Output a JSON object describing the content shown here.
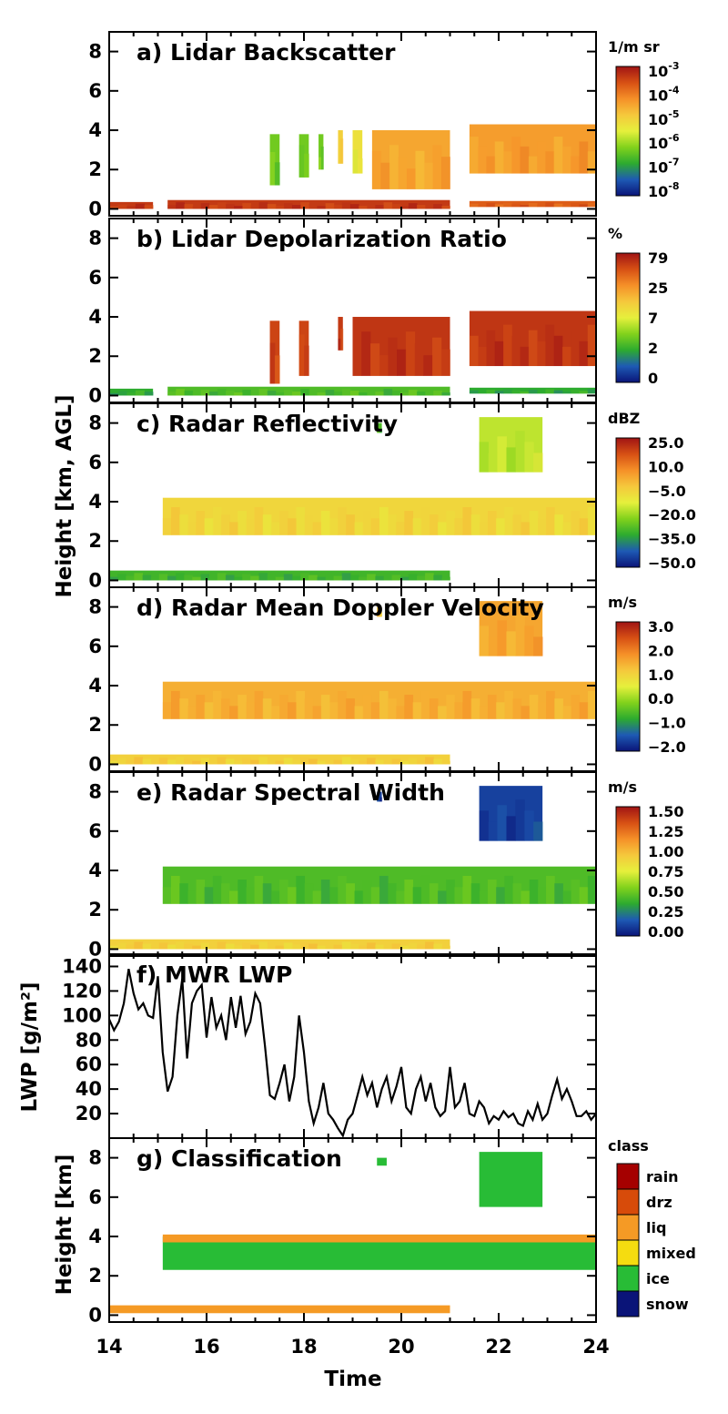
{
  "chart_data": [
    {
      "type": "heatmap",
      "panel": "a",
      "title": "a) Lidar Backscatter",
      "ylabel": "",
      "ylim": [
        0,
        9
      ],
      "yticks": [
        0,
        2,
        4,
        6,
        8
      ],
      "colorbar": {
        "unit": "1/m sr",
        "ticks": [
          "10",
          "10",
          "10",
          "10",
          "10",
          "10"
        ],
        "exponents": [
          "-3",
          "-4",
          "-5",
          "-6",
          "-7",
          "-8"
        ]
      },
      "regions": [
        {
          "x0": 14.0,
          "x1": 14.9,
          "base": 0.0,
          "top": 0.35,
          "level": 0.92
        },
        {
          "x0": 15.2,
          "x1": 21.0,
          "base": 0.0,
          "top": 0.45,
          "level": 0.92
        },
        {
          "x0": 21.4,
          "x1": 24.0,
          "base": 0.1,
          "top": 0.4,
          "level": 0.85
        },
        {
          "x0": 17.3,
          "x1": 17.5,
          "base": 1.2,
          "top": 3.8,
          "level": 0.35
        },
        {
          "x0": 17.9,
          "x1": 18.1,
          "base": 1.6,
          "top": 3.8,
          "level": 0.35
        },
        {
          "x0": 18.3,
          "x1": 18.4,
          "base": 2.0,
          "top": 3.8,
          "level": 0.35
        },
        {
          "x0": 18.7,
          "x1": 18.8,
          "base": 2.3,
          "top": 4.0,
          "level": 0.6
        },
        {
          "x0": 19.0,
          "x1": 19.2,
          "base": 1.8,
          "top": 4.0,
          "level": 0.55
        },
        {
          "x0": 19.4,
          "x1": 21.0,
          "base": 1.0,
          "top": 4.0,
          "level": 0.7
        },
        {
          "x0": 21.4,
          "x1": 24.0,
          "base": 1.8,
          "top": 4.3,
          "level": 0.72
        }
      ]
    },
    {
      "type": "heatmap",
      "panel": "b",
      "title": "b) Lidar Depolarization Ratio",
      "ylabel": "",
      "ylim": [
        0,
        9
      ],
      "yticks": [
        0,
        2,
        4,
        6,
        8
      ],
      "colorbar": {
        "unit": "%",
        "ticks": [
          "79",
          "25",
          "7",
          "2",
          "0"
        ]
      },
      "regions": [
        {
          "x0": 14.0,
          "x1": 14.9,
          "base": 0.0,
          "top": 0.35,
          "level": 0.25
        },
        {
          "x0": 15.2,
          "x1": 21.0,
          "base": 0.0,
          "top": 0.45,
          "level": 0.3
        },
        {
          "x0": 21.4,
          "x1": 24.0,
          "base": 0.1,
          "top": 0.4,
          "level": 0.25
        },
        {
          "x0": 17.3,
          "x1": 17.5,
          "base": 0.6,
          "top": 3.8,
          "level": 0.9
        },
        {
          "x0": 17.9,
          "x1": 18.1,
          "base": 1.0,
          "top": 3.8,
          "level": 0.9
        },
        {
          "x0": 18.7,
          "x1": 18.8,
          "base": 2.3,
          "top": 4.0,
          "level": 0.92
        },
        {
          "x0": 19.0,
          "x1": 21.0,
          "base": 1.0,
          "top": 4.0,
          "level": 0.93
        },
        {
          "x0": 21.4,
          "x1": 24.0,
          "base": 1.5,
          "top": 4.3,
          "level": 0.93
        }
      ]
    },
    {
      "type": "heatmap",
      "panel": "c",
      "title": "c) Radar Reflectivity",
      "ylabel": "",
      "ylim": [
        0,
        9
      ],
      "yticks": [
        0,
        2,
        4,
        6,
        8
      ],
      "colorbar": {
        "unit": "dBZ",
        "ticks": [
          "25.0",
          "10.0",
          "−5.0",
          "−20.0",
          "−35.0",
          "−50.0"
        ]
      },
      "regions": [
        {
          "x0": 14.0,
          "x1": 21.0,
          "base": 0.0,
          "top": 0.5,
          "level": 0.28
        },
        {
          "x0": 15.1,
          "x1": 24.0,
          "base": 2.3,
          "top": 4.2,
          "level": 0.58
        },
        {
          "x0": 21.6,
          "x1": 22.9,
          "base": 5.5,
          "top": 8.3,
          "level": 0.45
        },
        {
          "x0": 19.5,
          "x1": 19.6,
          "base": 7.5,
          "top": 8.0,
          "level": 0.3
        }
      ]
    },
    {
      "type": "heatmap",
      "panel": "d",
      "title": "d) Radar Mean Doppler Velocity",
      "ylabel": "",
      "ylim": [
        0,
        9
      ],
      "yticks": [
        0,
        2,
        4,
        6,
        8
      ],
      "colorbar": {
        "unit": "m/s",
        "ticks": [
          "3.0",
          "2.0",
          "1.0",
          "0.0",
          "−1.0",
          "−2.0"
        ]
      },
      "regions": [
        {
          "x0": 14.0,
          "x1": 21.0,
          "base": 0.0,
          "top": 0.5,
          "level": 0.6
        },
        {
          "x0": 15.1,
          "x1": 24.0,
          "base": 2.3,
          "top": 4.2,
          "level": 0.68
        },
        {
          "x0": 21.6,
          "x1": 22.9,
          "base": 5.5,
          "top": 8.3,
          "level": 0.7
        },
        {
          "x0": 19.5,
          "x1": 19.6,
          "base": 7.5,
          "top": 8.0,
          "level": 0.65
        }
      ]
    },
    {
      "type": "heatmap",
      "panel": "e",
      "title": "e) Radar Spectral Width",
      "ylabel": "",
      "ylim": [
        0,
        9
      ],
      "yticks": [
        0,
        2,
        4,
        6,
        8
      ],
      "colorbar": {
        "unit": "m/s",
        "ticks": [
          "1.50",
          "1.25",
          "1.00",
          "0.75",
          "0.50",
          "0.25",
          "0.00"
        ]
      },
      "regions": [
        {
          "x0": 14.0,
          "x1": 21.0,
          "base": 0.0,
          "top": 0.5,
          "level": 0.6
        },
        {
          "x0": 15.1,
          "x1": 24.0,
          "base": 2.3,
          "top": 4.2,
          "level": 0.3
        },
        {
          "x0": 21.6,
          "x1": 22.9,
          "base": 5.5,
          "top": 8.3,
          "level": 0.08
        },
        {
          "x0": 19.5,
          "x1": 19.6,
          "base": 7.5,
          "top": 8.0,
          "level": 0.08
        }
      ]
    },
    {
      "type": "line",
      "panel": "f",
      "title": "f) MWR LWP",
      "ylabel": "LWP [g/m²]",
      "ylim": [
        0,
        150
      ],
      "yticks": [
        20,
        40,
        60,
        80,
        100,
        120,
        140
      ],
      "series": [
        {
          "values_x": [
            14.0,
            14.1,
            14.2,
            14.3,
            14.4,
            14.5,
            14.6,
            14.7,
            14.8,
            14.9,
            15.0,
            15.1,
            15.2,
            15.3,
            15.4,
            15.5,
            15.6,
            15.7,
            15.8,
            15.9,
            16.0,
            16.1,
            16.2,
            16.3,
            16.4,
            16.5,
            16.6,
            16.7,
            16.8,
            16.9,
            17.0,
            17.1,
            17.2,
            17.3,
            17.4,
            17.5,
            17.6,
            17.7,
            17.8,
            17.9,
            18.0,
            18.1,
            18.2,
            18.3,
            18.4,
            18.5,
            18.6,
            18.7,
            18.8,
            18.9,
            19.0,
            19.1,
            19.2,
            19.3,
            19.4,
            19.5,
            19.6,
            19.7,
            19.8,
            19.9,
            20.0,
            20.1,
            20.2,
            20.3,
            20.4,
            20.5,
            20.6,
            20.7,
            20.8,
            20.9,
            21.0,
            21.1,
            21.2,
            21.3,
            21.4,
            21.5,
            21.6,
            21.7,
            21.8,
            21.9,
            22.0,
            22.1,
            22.2,
            22.3,
            22.4,
            22.5,
            22.6,
            22.7,
            22.8,
            22.9,
            23.0,
            23.1,
            23.2,
            23.3,
            23.4,
            23.5,
            23.6,
            23.7,
            23.8,
            23.9,
            24.0
          ],
          "values_y": [
            97,
            88,
            95,
            110,
            138,
            118,
            105,
            110,
            100,
            98,
            132,
            70,
            38,
            50,
            100,
            130,
            65,
            110,
            120,
            125,
            82,
            115,
            90,
            100,
            80,
            115,
            90,
            116,
            85,
            95,
            118,
            110,
            75,
            35,
            32,
            45,
            60,
            30,
            50,
            100,
            70,
            30,
            12,
            25,
            45,
            20,
            15,
            8,
            2,
            15,
            20,
            35,
            50,
            35,
            45,
            25,
            40,
            50,
            30,
            42,
            58,
            25,
            20,
            40,
            50,
            30,
            45,
            25,
            18,
            22,
            58,
            25,
            30,
            45,
            20,
            18,
            30,
            25,
            12,
            18,
            15,
            22,
            17,
            20,
            12,
            10,
            22,
            15,
            28,
            15,
            20,
            35,
            48,
            32,
            40,
            30,
            18,
            18,
            22,
            15,
            20
          ]
        }
      ]
    },
    {
      "type": "heatmap",
      "panel": "g",
      "title": "g) Classification",
      "ylabel": "Height [km]",
      "ylim": [
        0,
        9
      ],
      "yticks": [
        0,
        2,
        4,
        6,
        8
      ],
      "xlabel": "Time",
      "xlim": [
        14,
        24
      ],
      "xticks": [
        14,
        16,
        18,
        20,
        22,
        24
      ],
      "legend": {
        "title": "class",
        "items": [
          {
            "label": "rain",
            "color": "#a50000"
          },
          {
            "label": "drz",
            "color": "#d74b0a"
          },
          {
            "label": "liq",
            "color": "#f59a25"
          },
          {
            "label": "mixed",
            "color": "#f5dc10"
          },
          {
            "label": "ice",
            "color": "#28bc36"
          },
          {
            "label": "snow",
            "color": "#0a1478"
          }
        ]
      },
      "regions": [
        {
          "x0": 14.0,
          "x1": 21.0,
          "base": 0.1,
          "top": 0.5,
          "cls": "liq"
        },
        {
          "x0": 15.1,
          "x1": 24.0,
          "base": 2.3,
          "top": 4.0,
          "cls": "ice"
        },
        {
          "x0": 15.1,
          "x1": 24.0,
          "base": 3.7,
          "top": 4.1,
          "cls": "liq"
        },
        {
          "x0": 21.6,
          "x1": 22.9,
          "base": 5.5,
          "top": 8.3,
          "cls": "ice"
        },
        {
          "x0": 19.5,
          "x1": 19.7,
          "base": 7.6,
          "top": 8.0,
          "cls": "ice"
        }
      ]
    }
  ],
  "shared": {
    "ylabel_abc": "Height [km, AGL]",
    "colormap": [
      "#0a1478",
      "#1e5ab4",
      "#2dab2f",
      "#82d21c",
      "#e6f03c",
      "#f5c83c",
      "#f59028",
      "#d75014",
      "#a01414"
    ]
  }
}
